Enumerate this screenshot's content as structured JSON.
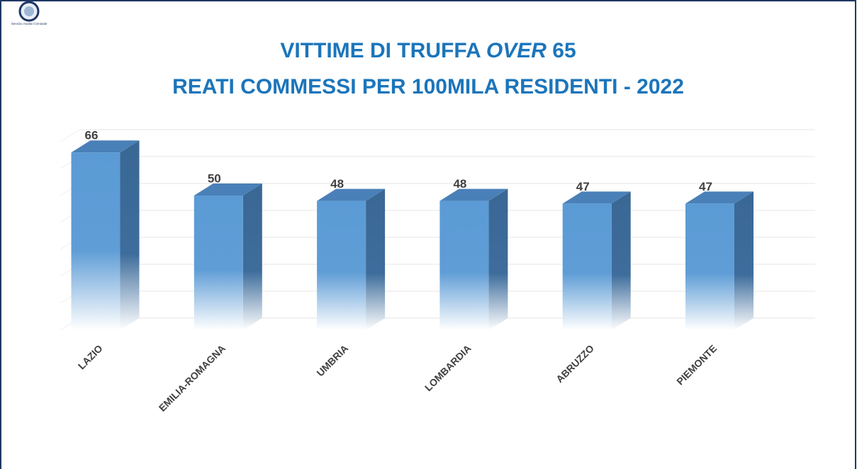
{
  "logo_text": "Servizio Analisi Criminale",
  "chart_data": {
    "type": "bar3d",
    "title": [
      "VITTIME DI TRUFFA",
      "OVER",
      "65"
    ],
    "subtitle": "REATI COMMESSI PER 100MILA RESIDENTI - 2022",
    "categories": [
      "LAZIO",
      "EMILIA-ROMAGNA",
      "UMBRIA",
      "LOMBARDIA",
      "ABRUZZO",
      "PIEMONTE"
    ],
    "values": [
      66,
      50,
      48,
      48,
      47,
      47
    ],
    "color": "#5b9bd5",
    "ylim": [
      0,
      70
    ],
    "yticks": [
      0,
      10,
      20,
      30,
      40,
      50,
      60,
      70
    ],
    "grid": true
  }
}
